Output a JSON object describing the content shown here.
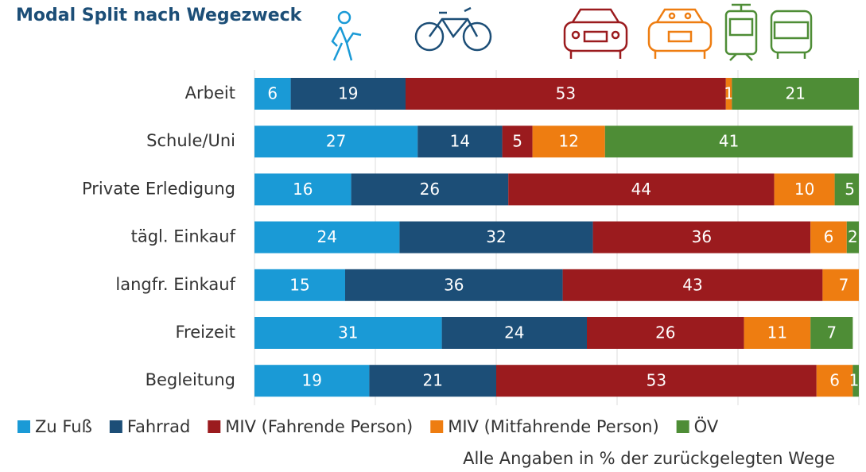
{
  "chart_data": {
    "type": "stacked_bar_horizontal",
    "title": "Modal Split nach Wegezweck",
    "note": "Alle Angaben in % der zurückgelegten Wege",
    "categories": [
      "Arbeit",
      "Schule/Uni",
      "Private Erledigung",
      "tägl. Einkauf",
      "langfr. Einkauf",
      "Freizeit",
      "Begleitung"
    ],
    "series": [
      {
        "name": "Zu Fuß",
        "color": "#1a9ad6",
        "values": [
          6,
          27,
          16,
          24,
          15,
          31,
          19
        ]
      },
      {
        "name": "Fahrrad",
        "color": "#1c4e77",
        "values": [
          19,
          14,
          26,
          32,
          36,
          24,
          21
        ]
      },
      {
        "name": "MIV (Fahrende Person)",
        "color": "#9b1b1e",
        "values": [
          53,
          5,
          44,
          36,
          43,
          26,
          53
        ]
      },
      {
        "name": "MIV (Mitfahrende Person)",
        "color": "#ee7d11",
        "values": [
          1,
          12,
          10,
          6,
          7,
          11,
          6
        ]
      },
      {
        "name": "ÖV",
        "color": "#4e8d36",
        "values": [
          21,
          41,
          5,
          2,
          null,
          7,
          1
        ]
      }
    ],
    "xlim": [
      0,
      100
    ],
    "xticks": [
      0,
      20,
      40,
      60,
      80,
      100
    ],
    "grid": true
  }
}
